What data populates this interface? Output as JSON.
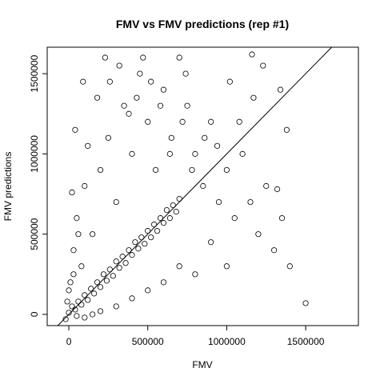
{
  "chart_data": {
    "type": "scatter",
    "title": "FMV vs FMV predictions (rep #1)",
    "x_label": "FMV",
    "y_label": "FMV predictions",
    "xlim": [
      -137000,
      1834000
    ],
    "ylim": [
      -70000,
      1665000
    ],
    "xticks": [
      0,
      500000,
      1000000,
      1500000
    ],
    "yticks": [
      0,
      500000,
      1000000,
      1500000
    ],
    "color": "#000000",
    "reference_line": {
      "intercept": 0,
      "slope": 1
    },
    "x": [
      0,
      20000,
      40000,
      60000,
      80000,
      100000,
      120000,
      140000,
      160000,
      180000,
      200000,
      220000,
      240000,
      260000,
      280000,
      300000,
      320000,
      340000,
      360000,
      380000,
      400000,
      420000,
      440000,
      460000,
      480000,
      500000,
      520000,
      540000,
      560000,
      580000,
      600000,
      620000,
      640000,
      660000,
      680000,
      700000,
      -20000,
      10000,
      30000,
      50000,
      80000,
      100000,
      150000,
      200000,
      250000,
      300000,
      350000,
      400000,
      450000,
      500000,
      550000,
      600000,
      650000,
      700000,
      750000,
      800000,
      850000,
      900000,
      950000,
      1000000,
      1050000,
      1100000,
      1150000,
      1200000,
      1250000,
      1300000,
      1350000,
      1400000,
      1500000,
      1340000,
      1380000,
      1320000,
      1000000,
      900000,
      800000,
      700000,
      600000,
      500000,
      400000,
      300000,
      200000,
      150000,
      100000,
      50000,
      0,
      -10000,
      30000,
      60000,
      20000,
      40000,
      120000,
      90000,
      180000,
      230000,
      260000,
      320000,
      380000,
      430000,
      470000,
      520000,
      580000,
      640000,
      720000,
      780000,
      860000,
      940000,
      1080000,
      1170000,
      1230000,
      1160000,
      1020000,
      740000
    ],
    "y": [
      10000,
      50000,
      30000,
      80000,
      60000,
      120000,
      90000,
      160000,
      130000,
      200000,
      170000,
      250000,
      210000,
      280000,
      240000,
      330000,
      290000,
      360000,
      320000,
      400000,
      370000,
      450000,
      410000,
      480000,
      440000,
      520000,
      480000,
      560000,
      520000,
      600000,
      570000,
      650000,
      600000,
      680000,
      640000,
      720000,
      -30000,
      200000,
      400000,
      600000,
      300000,
      800000,
      500000,
      900000,
      1100000,
      700000,
      1300000,
      1000000,
      1500000,
      1200000,
      900000,
      1400000,
      1100000,
      1600000,
      1300000,
      1000000,
      800000,
      1200000,
      700000,
      900000,
      600000,
      1000000,
      700000,
      500000,
      800000,
      400000,
      600000,
      300000,
      70000,
      1400000,
      1150000,
      780000,
      300000,
      450000,
      250000,
      300000,
      200000,
      150000,
      100000,
      50000,
      20000,
      0,
      -20000,
      -10000,
      150000,
      80000,
      250000,
      500000,
      760000,
      1150000,
      1050000,
      1450000,
      1350000,
      1600000,
      1450000,
      1550000,
      1250000,
      1350000,
      1600000,
      1450000,
      1300000,
      1000000,
      1200000,
      900000,
      1100000,
      1050000,
      1200000,
      1350000,
      1550000,
      1620000,
      1450000,
      1500000
    ]
  }
}
